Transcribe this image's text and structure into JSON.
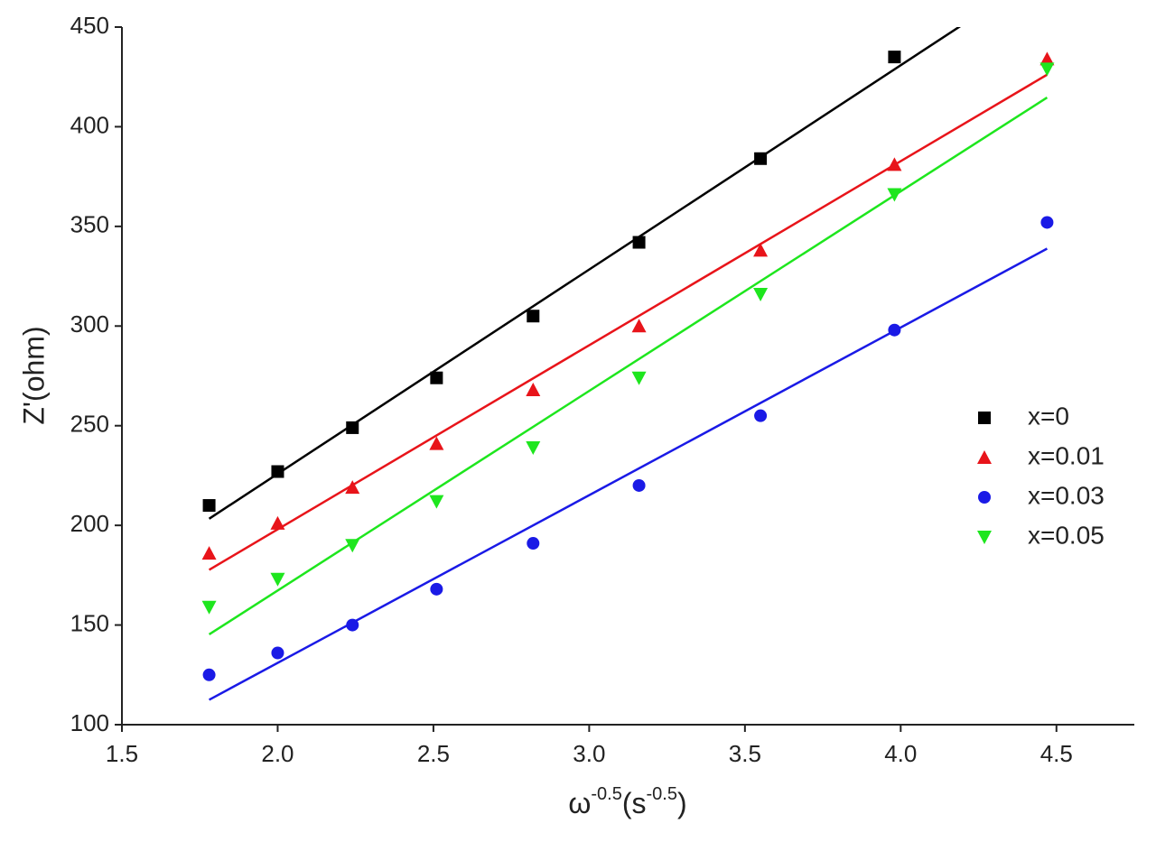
{
  "chart_data": {
    "type": "scatter",
    "ylabel": "Z'(ohm)",
    "xlabel": [
      "ω",
      "-0.5",
      "(s",
      "-0.5",
      ")"
    ],
    "x": [
      1.78,
      2.0,
      2.24,
      2.51,
      2.82,
      3.16,
      3.55,
      3.98,
      4.47
    ],
    "series": [
      {
        "name": "x=0",
        "color": "#000000",
        "marker": "square",
        "values": [
          210,
          227,
          249,
          274,
          305,
          342,
          384,
          435,
          null
        ]
      },
      {
        "name": "x=0.01",
        "color": "#e8141a",
        "marker": "triangle-up",
        "values": [
          186,
          201,
          219,
          241,
          268,
          300,
          338,
          381,
          434
        ]
      },
      {
        "name": "x=0.03",
        "color": "#1a1ae6",
        "marker": "circle",
        "values": [
          125,
          136,
          150,
          168,
          191,
          220,
          255,
          298,
          352
        ]
      },
      {
        "name": "x=0.05",
        "color": "#1ee61e",
        "marker": "triangle-down",
        "values": [
          159,
          173,
          190,
          212,
          239,
          274,
          316,
          366,
          429
        ]
      }
    ],
    "fit_line": true,
    "xlim": [
      1.5,
      4.75
    ],
    "ylim": [
      100,
      450
    ],
    "xticks": [
      1.5,
      {
        "value": 2,
        "label": "2.0"
      },
      2.5,
      {
        "value": 3,
        "label": "3.0"
      },
      3.5,
      {
        "value": 4,
        "label": "4.0"
      },
      4.5
    ],
    "yticks": [
      100,
      150,
      200,
      250,
      300,
      350,
      400,
      450
    ],
    "legend": "right"
  }
}
